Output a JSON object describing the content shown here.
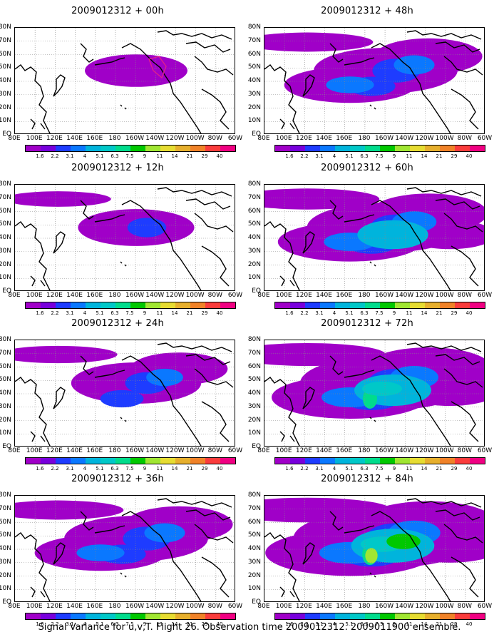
{
  "caption": "Signal Variance for u,v,T. Flight 26. Observation time 2009012312. 2009011900 ensemble.",
  "axes": {
    "lat_labels": [
      "80N",
      "70N",
      "60N",
      "50N",
      "40N",
      "30N",
      "20N",
      "10N",
      "EQ"
    ],
    "lon_labels": [
      "80E",
      "100E",
      "120E",
      "140E",
      "160E",
      "180",
      "160W",
      "140W",
      "120W",
      "100W",
      "80W",
      "60W"
    ]
  },
  "colorbar": {
    "labels": [
      "1.6",
      "2.2",
      "3.1",
      "4",
      "5.1",
      "6.3",
      "7.5",
      "9",
      "11",
      "14",
      "21",
      "29",
      "40"
    ],
    "colors": [
      "#a000c8",
      "#7800dc",
      "#1e3cff",
      "#0a78ff",
      "#00b4dc",
      "#00c8c8",
      "#00dc8c",
      "#00c800",
      "#a0e632",
      "#e6dc32",
      "#e6af2d",
      "#f08228",
      "#fa3c3c",
      "#f00082"
    ]
  },
  "panels": [
    {
      "title": "2009012312 + 00h",
      "intensity": 0
    },
    {
      "title": "2009012312 + 12h",
      "intensity": 1
    },
    {
      "title": "2009012312 + 24h",
      "intensity": 2
    },
    {
      "title": "2009012312 + 36h",
      "intensity": 3
    },
    {
      "title": "2009012312 + 48h",
      "intensity": 3
    },
    {
      "title": "2009012312 + 60h",
      "intensity": 4
    },
    {
      "title": "2009012312 + 72h",
      "intensity": 5
    },
    {
      "title": "2009012312 + 84h",
      "intensity": 6
    }
  ]
}
